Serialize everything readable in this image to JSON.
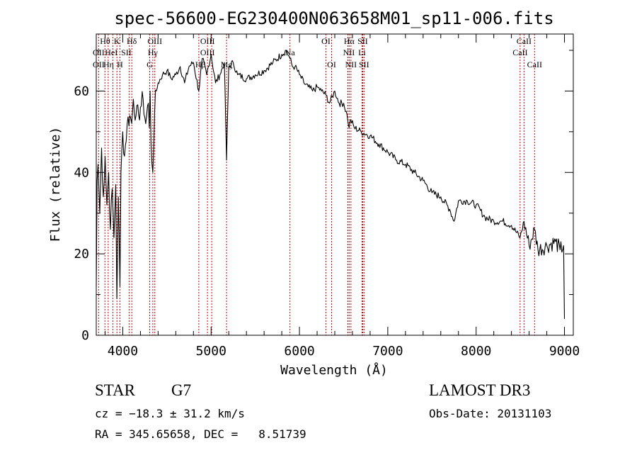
{
  "chart_data": {
    "type": "line",
    "title": "spec-56600-EG230400N063658M01_sp11-006.fits",
    "xlabel": "Wavelength (Å)",
    "ylabel": "Flux (relative)",
    "xlim": [
      3700,
      9100
    ],
    "ylim": [
      0,
      74
    ],
    "x_ticks": [
      4000,
      5000,
      6000,
      7000,
      8000,
      9000
    ],
    "y_ticks": [
      0,
      20,
      40,
      60
    ],
    "series": [
      {
        "x": [
          3700,
          3710,
          3720,
          3740,
          3760,
          3780,
          3800,
          3820,
          3840,
          3860,
          3880,
          3900,
          3920,
          3933,
          3950,
          3968,
          3980,
          4000,
          4020,
          4050,
          4080,
          4101,
          4120,
          4150,
          4180,
          4200,
          4230,
          4260,
          4290,
          4300,
          4310,
          4320,
          4340,
          4361,
          4380,
          4400,
          4450,
          4500,
          4550,
          4600,
          4650,
          4700,
          4750,
          4800,
          4861,
          4900,
          4950,
          5000,
          5050,
          5100,
          5150,
          5175,
          5200,
          5250,
          5300,
          5400,
          5500,
          5600,
          5700,
          5800,
          5850,
          5893,
          5920,
          5950,
          6000,
          6050,
          6100,
          6150,
          6200,
          6250,
          6300,
          6340,
          6400,
          6450,
          6500,
          6540,
          6563,
          6580,
          6620,
          6700,
          6800,
          6900,
          7000,
          7100,
          7200,
          7300,
          7400,
          7500,
          7600,
          7700,
          7750,
          7800,
          7900,
          8000,
          8100,
          8200,
          8300,
          8400,
          8498,
          8542,
          8600,
          8662,
          8700,
          8800,
          8900,
          8950,
          8990,
          9000
        ],
        "y": [
          12,
          38,
          42,
          30,
          46,
          34,
          44,
          32,
          40,
          26,
          36,
          24,
          37,
          9,
          34,
          12,
          40,
          50,
          44,
          52,
          54,
          52,
          58,
          54,
          54,
          56,
          58,
          52,
          57,
          51,
          60,
          47,
          40,
          55,
          60,
          62,
          64,
          65,
          63,
          64,
          66,
          62,
          66,
          67,
          60,
          68,
          64,
          69,
          62,
          64,
          67,
          43,
          66,
          67,
          64,
          63,
          64,
          65,
          67,
          69,
          70,
          68,
          66,
          66,
          64,
          62,
          61,
          60,
          61,
          60,
          59,
          57,
          60,
          57,
          57,
          54,
          51,
          53,
          51,
          50,
          49,
          47,
          45,
          43,
          42,
          40,
          38,
          35,
          34,
          31,
          28,
          33,
          33,
          32,
          29,
          28,
          28,
          27,
          24,
          28,
          22,
          26,
          21,
          22,
          23,
          21,
          22,
          4
        ]
      }
    ],
    "line_markers": [
      {
        "name": "OII",
        "wavelength": 3727
      },
      {
        "name": "Hθ",
        "wavelength": 3798
      },
      {
        "name": "Hη",
        "wavelength": 3835
      },
      {
        "name": "HeI",
        "wavelength": 3889
      },
      {
        "name": "K",
        "wavelength": 3934
      },
      {
        "name": "H",
        "wavelength": 3968
      },
      {
        "name": "SII",
        "wavelength": 4072
      },
      {
        "name": "Hδ",
        "wavelength": 4102
      },
      {
        "name": "G",
        "wavelength": 4305
      },
      {
        "name": "Hγ",
        "wavelength": 4340
      },
      {
        "name": "OIII",
        "wavelength": 4363
      },
      {
        "name": "Hβ",
        "wavelength": 4861
      },
      {
        "name": "OIII",
        "wavelength": 4959
      },
      {
        "name": "OIII",
        "wavelength": 5007
      },
      {
        "name": "Mg",
        "wavelength": 5175
      },
      {
        "name": "Na",
        "wavelength": 5893
      },
      {
        "name": "OI",
        "wavelength": 6300
      },
      {
        "name": "OI",
        "wavelength": 6364
      },
      {
        "name": "NII",
        "wavelength": 6548
      },
      {
        "name": "Hα",
        "wavelength": 6563
      },
      {
        "name": "NII",
        "wavelength": 6583
      },
      {
        "name": "Li",
        "wavelength": 6708
      },
      {
        "name": "SII",
        "wavelength": 6716
      },
      {
        "name": "SII",
        "wavelength": 6731
      },
      {
        "name": "CaII",
        "wavelength": 8498
      },
      {
        "name": "CaII",
        "wavelength": 8542
      },
      {
        "name": "CaII",
        "wavelength": 8662
      }
    ],
    "line_labels": [
      {
        "text": "Hθ",
        "x": 3800,
        "row": 1
      },
      {
        "text": "K",
        "x": 3934,
        "row": 1
      },
      {
        "text": "Hδ",
        "x": 4102,
        "row": 1
      },
      {
        "text": "OIII",
        "x": 4363,
        "row": 1
      },
      {
        "text": "OIII",
        "x": 4959,
        "row": 1
      },
      {
        "text": "OI",
        "x": 6300,
        "row": 1
      },
      {
        "text": "Hα",
        "x": 6563,
        "row": 1
      },
      {
        "text": "SII",
        "x": 6716,
        "row": 1
      },
      {
        "text": "CaII",
        "x": 8542,
        "row": 1
      },
      {
        "text": "OII",
        "x": 3727,
        "row": 2
      },
      {
        "text": "HeI",
        "x": 3870,
        "row": 2
      },
      {
        "text": "SII",
        "x": 4040,
        "row": 2
      },
      {
        "text": "Hγ",
        "x": 4340,
        "row": 2
      },
      {
        "text": "OIII",
        "x": 4959,
        "row": 2
      },
      {
        "text": "Na",
        "x": 5893,
        "row": 2
      },
      {
        "text": "NII",
        "x": 6560,
        "row": 2
      },
      {
        "text": "Li",
        "x": 6708,
        "row": 2
      },
      {
        "text": "CaII",
        "x": 8498,
        "row": 2
      },
      {
        "text": "OII",
        "x": 3727,
        "row": 3
      },
      {
        "text": "Hη",
        "x": 3840,
        "row": 3
      },
      {
        "text": "H",
        "x": 3968,
        "row": 3
      },
      {
        "text": "G",
        "x": 4305,
        "row": 3
      },
      {
        "text": "Hβ",
        "x": 4880,
        "row": 3
      },
      {
        "text": "Mg",
        "x": 5175,
        "row": 3
      },
      {
        "text": "OI",
        "x": 6364,
        "row": 3
      },
      {
        "text": "NII",
        "x": 6583,
        "row": 3
      },
      {
        "text": "SII",
        "x": 6731,
        "row": 3
      },
      {
        "text": "CaII",
        "x": 8662,
        "row": 3
      }
    ],
    "line_color": "#000000",
    "marker_color": "#cc0000"
  },
  "info": {
    "object_class": "STAR",
    "subclass": "G7",
    "survey": "LAMOST DR3",
    "redshift": "cz = −18.3 ± 31.2 km/s",
    "obs_date": "Obs-Date: 20131103",
    "coordinates": "RA = 345.65658, DEC =   8.51739"
  }
}
